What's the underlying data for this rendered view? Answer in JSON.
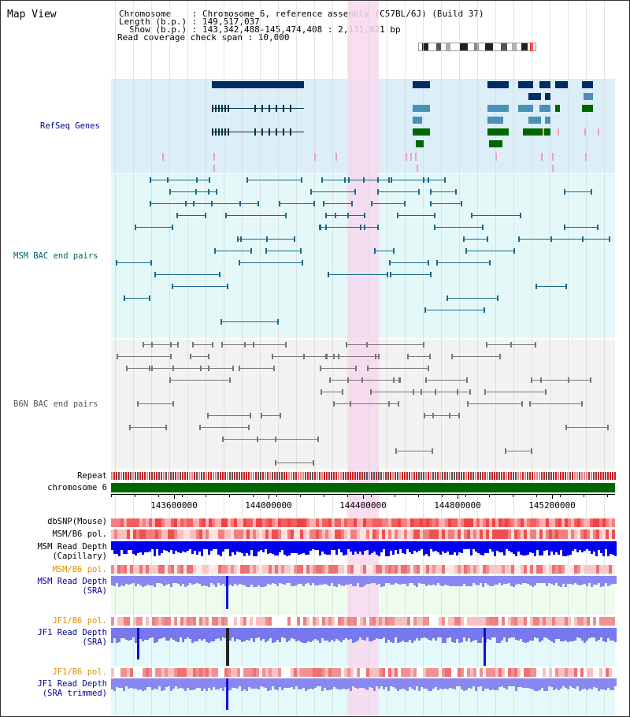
{
  "title": "Map View",
  "info": {
    "chromosome": "Chromosome    : Chromosome 6, reference assembly (C57BL/6J) (Build 37)",
    "length": "Length (b.p.) : 149,517,037",
    "show": "  Show (b.p.) : 143,342,488-145,474,408 : 2,131,921 bp",
    "span": "Read coverage check span : 10,000"
  },
  "tracks": {
    "refseq": "RefSeq Genes",
    "msm_bac": "MSM BAC end pairs",
    "b6n_bac": "B6N BAC end pairs",
    "repeat": "Repeat",
    "chromosome": "chromosome 6",
    "dbsnp": "dbSNP(Mouse)",
    "msm_b6_pol_1": "MSM/B6 pol.",
    "msm_read_depth_cap": "MSM Read Depth",
    "capillary": "(Capillary)",
    "msm_b6_pol_2": "MSM/B6 pol.",
    "msm_read_depth_sra": "MSM Read Depth",
    "sra_1": "(SRA)",
    "jf1_b6_pol_1": "JF1/B6 pol.",
    "jf1_read_depth": "JF1 Read Depth",
    "sra_2": "(SRA)",
    "jf1_b6_pol_2": "JF1/B6 pol.",
    "jf1_read_depth_trim": "JF1 Read Depth",
    "sra_trimmed": "(SRA trimmed)"
  },
  "axis": {
    "ticks": [
      "143600000",
      "144000000",
      "144400000",
      "144800000",
      "145200000"
    ]
  },
  "colors": {
    "refseq_bg": "#dceef8",
    "msm_bg": "#e4f8f8",
    "b6n_bg": "#f0f0f0",
    "highlight": "#f8d8f0",
    "gene_dark": "#002b66",
    "gene_light": "#4a90b8",
    "gene_green": "#006600",
    "msm_line": "#1a6a8a",
    "b6n_line": "#777777",
    "chrom_green": "#006600",
    "depth_blue": "#0000ee",
    "sra_blue": "#7777ee",
    "label_blue": "#000099",
    "label_orange": "#e09000",
    "label_teal": "#006666"
  }
}
